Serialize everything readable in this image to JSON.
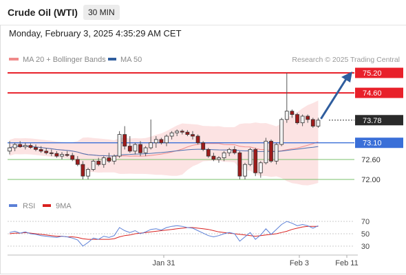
{
  "header": {
    "title": "Crude Oil (WTI)",
    "timeframe": "30 MIN",
    "datetime": "Monday, February 3, 2025 4:35:29 AM CET"
  },
  "chart_data": [
    {
      "type": "candlestick",
      "legend": [
        {
          "label": "MA 20 + Bollinger Bands",
          "color": "#f08a8a"
        },
        {
          "label": "MA 50",
          "color": "#2f5d9e"
        }
      ],
      "source": "Research © 2025 Trading Central",
      "last_price": "73.78",
      "levels": [
        {
          "label": "75.20",
          "value": 75.2,
          "kind": "resistance",
          "color": "#e8202a"
        },
        {
          "label": "74.60",
          "value": 74.6,
          "kind": "resistance",
          "color": "#e8202a"
        },
        {
          "label": "73.10",
          "value": 73.1,
          "kind": "pivot",
          "color": "#3a6fd8"
        },
        {
          "label": "72.60",
          "value": 72.6,
          "kind": "support",
          "color": "#7ac26b"
        },
        {
          "label": "72.00",
          "value": 72.0,
          "kind": "support",
          "color": "#7ac26b"
        }
      ],
      "x_labels": [
        "Jan 31",
        "Feb 3",
        "Feb 11"
      ],
      "arrow": {
        "from": 73.78,
        "to": 75.2,
        "color": "#2f5d9e"
      },
      "candles": [
        {
          "o": 72.85,
          "h": 73.15,
          "l": 72.75,
          "c": 72.95
        },
        {
          "o": 72.95,
          "h": 73.1,
          "l": 72.85,
          "c": 73.05
        },
        {
          "o": 73.05,
          "h": 73.15,
          "l": 72.95,
          "c": 72.98
        },
        {
          "o": 72.98,
          "h": 73.1,
          "l": 72.9,
          "c": 73.02
        },
        {
          "o": 73.02,
          "h": 73.08,
          "l": 72.92,
          "c": 72.96
        },
        {
          "o": 72.96,
          "h": 73.05,
          "l": 72.85,
          "c": 72.9
        },
        {
          "o": 72.9,
          "h": 73.0,
          "l": 72.8,
          "c": 72.85
        },
        {
          "o": 72.85,
          "h": 72.95,
          "l": 72.75,
          "c": 72.8
        },
        {
          "o": 72.8,
          "h": 72.9,
          "l": 72.7,
          "c": 72.78
        },
        {
          "o": 72.78,
          "h": 72.85,
          "l": 72.65,
          "c": 72.7
        },
        {
          "o": 72.7,
          "h": 72.82,
          "l": 72.6,
          "c": 72.75
        },
        {
          "o": 72.75,
          "h": 72.85,
          "l": 72.68,
          "c": 72.72
        },
        {
          "o": 72.72,
          "h": 72.8,
          "l": 72.55,
          "c": 72.6
        },
        {
          "o": 72.6,
          "h": 72.7,
          "l": 72.4,
          "c": 72.45
        },
        {
          "o": 72.45,
          "h": 72.55,
          "l": 72.0,
          "c": 72.1
        },
        {
          "o": 72.1,
          "h": 72.35,
          "l": 72.0,
          "c": 72.3
        },
        {
          "o": 72.3,
          "h": 72.6,
          "l": 72.25,
          "c": 72.55
        },
        {
          "o": 72.55,
          "h": 72.65,
          "l": 72.4,
          "c": 72.45
        },
        {
          "o": 72.45,
          "h": 72.7,
          "l": 72.35,
          "c": 72.65
        },
        {
          "o": 72.65,
          "h": 72.8,
          "l": 72.5,
          "c": 72.55
        },
        {
          "o": 72.55,
          "h": 72.75,
          "l": 72.45,
          "c": 72.7
        },
        {
          "o": 72.7,
          "h": 73.45,
          "l": 72.65,
          "c": 73.35
        },
        {
          "o": 73.35,
          "h": 73.6,
          "l": 72.9,
          "c": 73.0
        },
        {
          "o": 73.0,
          "h": 73.3,
          "l": 72.8,
          "c": 72.85
        },
        {
          "o": 72.85,
          "h": 73.1,
          "l": 72.75,
          "c": 73.05
        },
        {
          "o": 73.05,
          "h": 73.15,
          "l": 72.7,
          "c": 72.8
        },
        {
          "o": 72.8,
          "h": 73.0,
          "l": 72.7,
          "c": 72.95
        },
        {
          "o": 72.95,
          "h": 73.8,
          "l": 72.9,
          "c": 73.1
        },
        {
          "o": 73.1,
          "h": 73.3,
          "l": 72.95,
          "c": 73.2
        },
        {
          "o": 73.2,
          "h": 73.25,
          "l": 73.05,
          "c": 73.1
        },
        {
          "o": 73.1,
          "h": 73.35,
          "l": 73.0,
          "c": 73.3
        },
        {
          "o": 73.3,
          "h": 73.45,
          "l": 73.2,
          "c": 73.4
        },
        {
          "o": 73.4,
          "h": 73.5,
          "l": 73.3,
          "c": 73.45
        },
        {
          "o": 73.45,
          "h": 73.5,
          "l": 73.35,
          "c": 73.42
        },
        {
          "o": 73.42,
          "h": 73.48,
          "l": 73.3,
          "c": 73.35
        },
        {
          "o": 73.35,
          "h": 73.45,
          "l": 73.2,
          "c": 73.3
        },
        {
          "o": 73.3,
          "h": 73.35,
          "l": 73.05,
          "c": 73.1
        },
        {
          "o": 73.1,
          "h": 73.15,
          "l": 72.85,
          "c": 72.9
        },
        {
          "o": 72.9,
          "h": 72.95,
          "l": 72.65,
          "c": 72.7
        },
        {
          "o": 72.7,
          "h": 72.8,
          "l": 72.55,
          "c": 72.6
        },
        {
          "o": 72.6,
          "h": 72.7,
          "l": 72.5,
          "c": 72.65
        },
        {
          "o": 72.65,
          "h": 72.85,
          "l": 72.55,
          "c": 72.8
        },
        {
          "o": 72.8,
          "h": 72.95,
          "l": 72.7,
          "c": 72.9
        },
        {
          "o": 72.9,
          "h": 73.0,
          "l": 72.75,
          "c": 72.8
        },
        {
          "o": 72.8,
          "h": 72.85,
          "l": 72.0,
          "c": 72.1
        },
        {
          "o": 72.1,
          "h": 72.5,
          "l": 72.0,
          "c": 72.45
        },
        {
          "o": 72.45,
          "h": 72.95,
          "l": 72.4,
          "c": 72.9
        },
        {
          "o": 72.9,
          "h": 72.95,
          "l": 72.1,
          "c": 72.2
        },
        {
          "o": 72.2,
          "h": 72.55,
          "l": 72.05,
          "c": 72.5
        },
        {
          "o": 72.5,
          "h": 73.25,
          "l": 72.45,
          "c": 73.15
        },
        {
          "o": 73.15,
          "h": 73.2,
          "l": 72.5,
          "c": 72.55
        },
        {
          "o": 72.55,
          "h": 73.1,
          "l": 72.45,
          "c": 73.05
        },
        {
          "o": 73.05,
          "h": 73.85,
          "l": 73.0,
          "c": 73.8
        },
        {
          "o": 73.8,
          "h": 75.2,
          "l": 73.7,
          "c": 74.05
        },
        {
          "o": 74.05,
          "h": 74.1,
          "l": 73.85,
          "c": 73.95
        },
        {
          "o": 73.95,
          "h": 74.0,
          "l": 73.65,
          "c": 73.7
        },
        {
          "o": 73.7,
          "h": 73.95,
          "l": 73.6,
          "c": 73.9
        },
        {
          "o": 73.9,
          "h": 73.95,
          "l": 73.7,
          "c": 73.8
        },
        {
          "o": 73.8,
          "h": 73.85,
          "l": 73.55,
          "c": 73.6
        },
        {
          "o": 73.6,
          "h": 73.85,
          "l": 73.55,
          "c": 73.78
        }
      ]
    },
    {
      "type": "line",
      "legend": [
        {
          "label": "RSI",
          "color": "#5b7fd6"
        },
        {
          "label": "9MA",
          "color": "#d9211f"
        }
      ],
      "y_ticks": [
        "70",
        "50",
        "30"
      ],
      "ylim": [
        20,
        80
      ],
      "rsi": [
        52,
        54,
        51,
        53,
        50,
        49,
        47,
        46,
        45,
        44,
        46,
        45,
        43,
        40,
        30,
        36,
        43,
        41,
        46,
        44,
        47,
        60,
        55,
        52,
        55,
        50,
        53,
        57,
        58,
        56,
        60,
        62,
        63,
        62,
        60,
        59,
        55,
        51,
        47,
        45,
        47,
        50,
        52,
        50,
        38,
        45,
        52,
        41,
        48,
        58,
        49,
        57,
        65,
        70,
        67,
        63,
        65,
        63,
        59,
        63
      ],
      "ma9": [
        50,
        51,
        51,
        52,
        51,
        50,
        49,
        48,
        47,
        46,
        46,
        45,
        45,
        44,
        42,
        41,
        41,
        41,
        41,
        41,
        42,
        45,
        47,
        48,
        50,
        51,
        52,
        53,
        54,
        55,
        56,
        57,
        58,
        59,
        60,
        60,
        59,
        58,
        57,
        55,
        53,
        52,
        51,
        50,
        49,
        48,
        47,
        46,
        47,
        48,
        49,
        50,
        52,
        54,
        57,
        59,
        61,
        62,
        62,
        62
      ]
    }
  ]
}
